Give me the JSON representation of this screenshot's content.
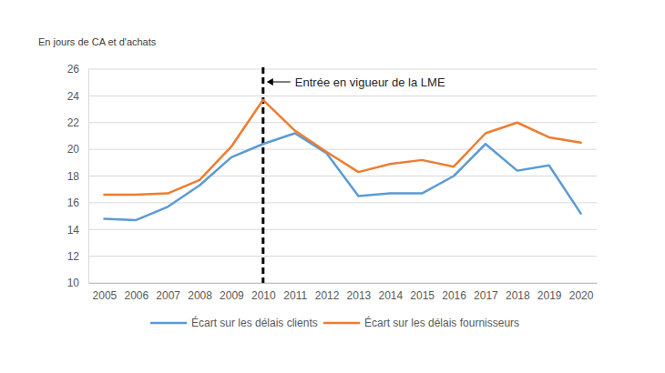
{
  "chart_data": {
    "type": "line",
    "y_label": "En jours de CA et d'achats",
    "categories": [
      "2005",
      "2006",
      "2007",
      "2008",
      "2009",
      "2010",
      "2011",
      "2012",
      "2013",
      "2014",
      "2015",
      "2016",
      "2017",
      "2018",
      "2019",
      "2020"
    ],
    "series": [
      {
        "name": "Écart sur les délais clients",
        "color": "#5b9bd5",
        "values": [
          14.8,
          14.7,
          15.7,
          17.3,
          19.4,
          20.4,
          21.2,
          19.7,
          16.5,
          16.7,
          16.7,
          18.0,
          20.4,
          18.4,
          18.8,
          15.2
        ]
      },
      {
        "name": "Écart sur les délais fournisseurs",
        "color": "#ed7d31",
        "values": [
          16.6,
          16.6,
          16.7,
          17.7,
          20.2,
          23.7,
          21.4,
          19.8,
          18.3,
          18.9,
          19.2,
          18.7,
          21.2,
          22.0,
          20.9,
          20.5
        ]
      }
    ],
    "ylim": [
      10,
      26
    ],
    "yticks": [
      10,
      12,
      14,
      16,
      18,
      20,
      22,
      24,
      26
    ],
    "grid": true,
    "legend": "bottom",
    "annotations": [
      {
        "text": "Entrée en vigueur de la LME",
        "x": "2010"
      }
    ]
  }
}
